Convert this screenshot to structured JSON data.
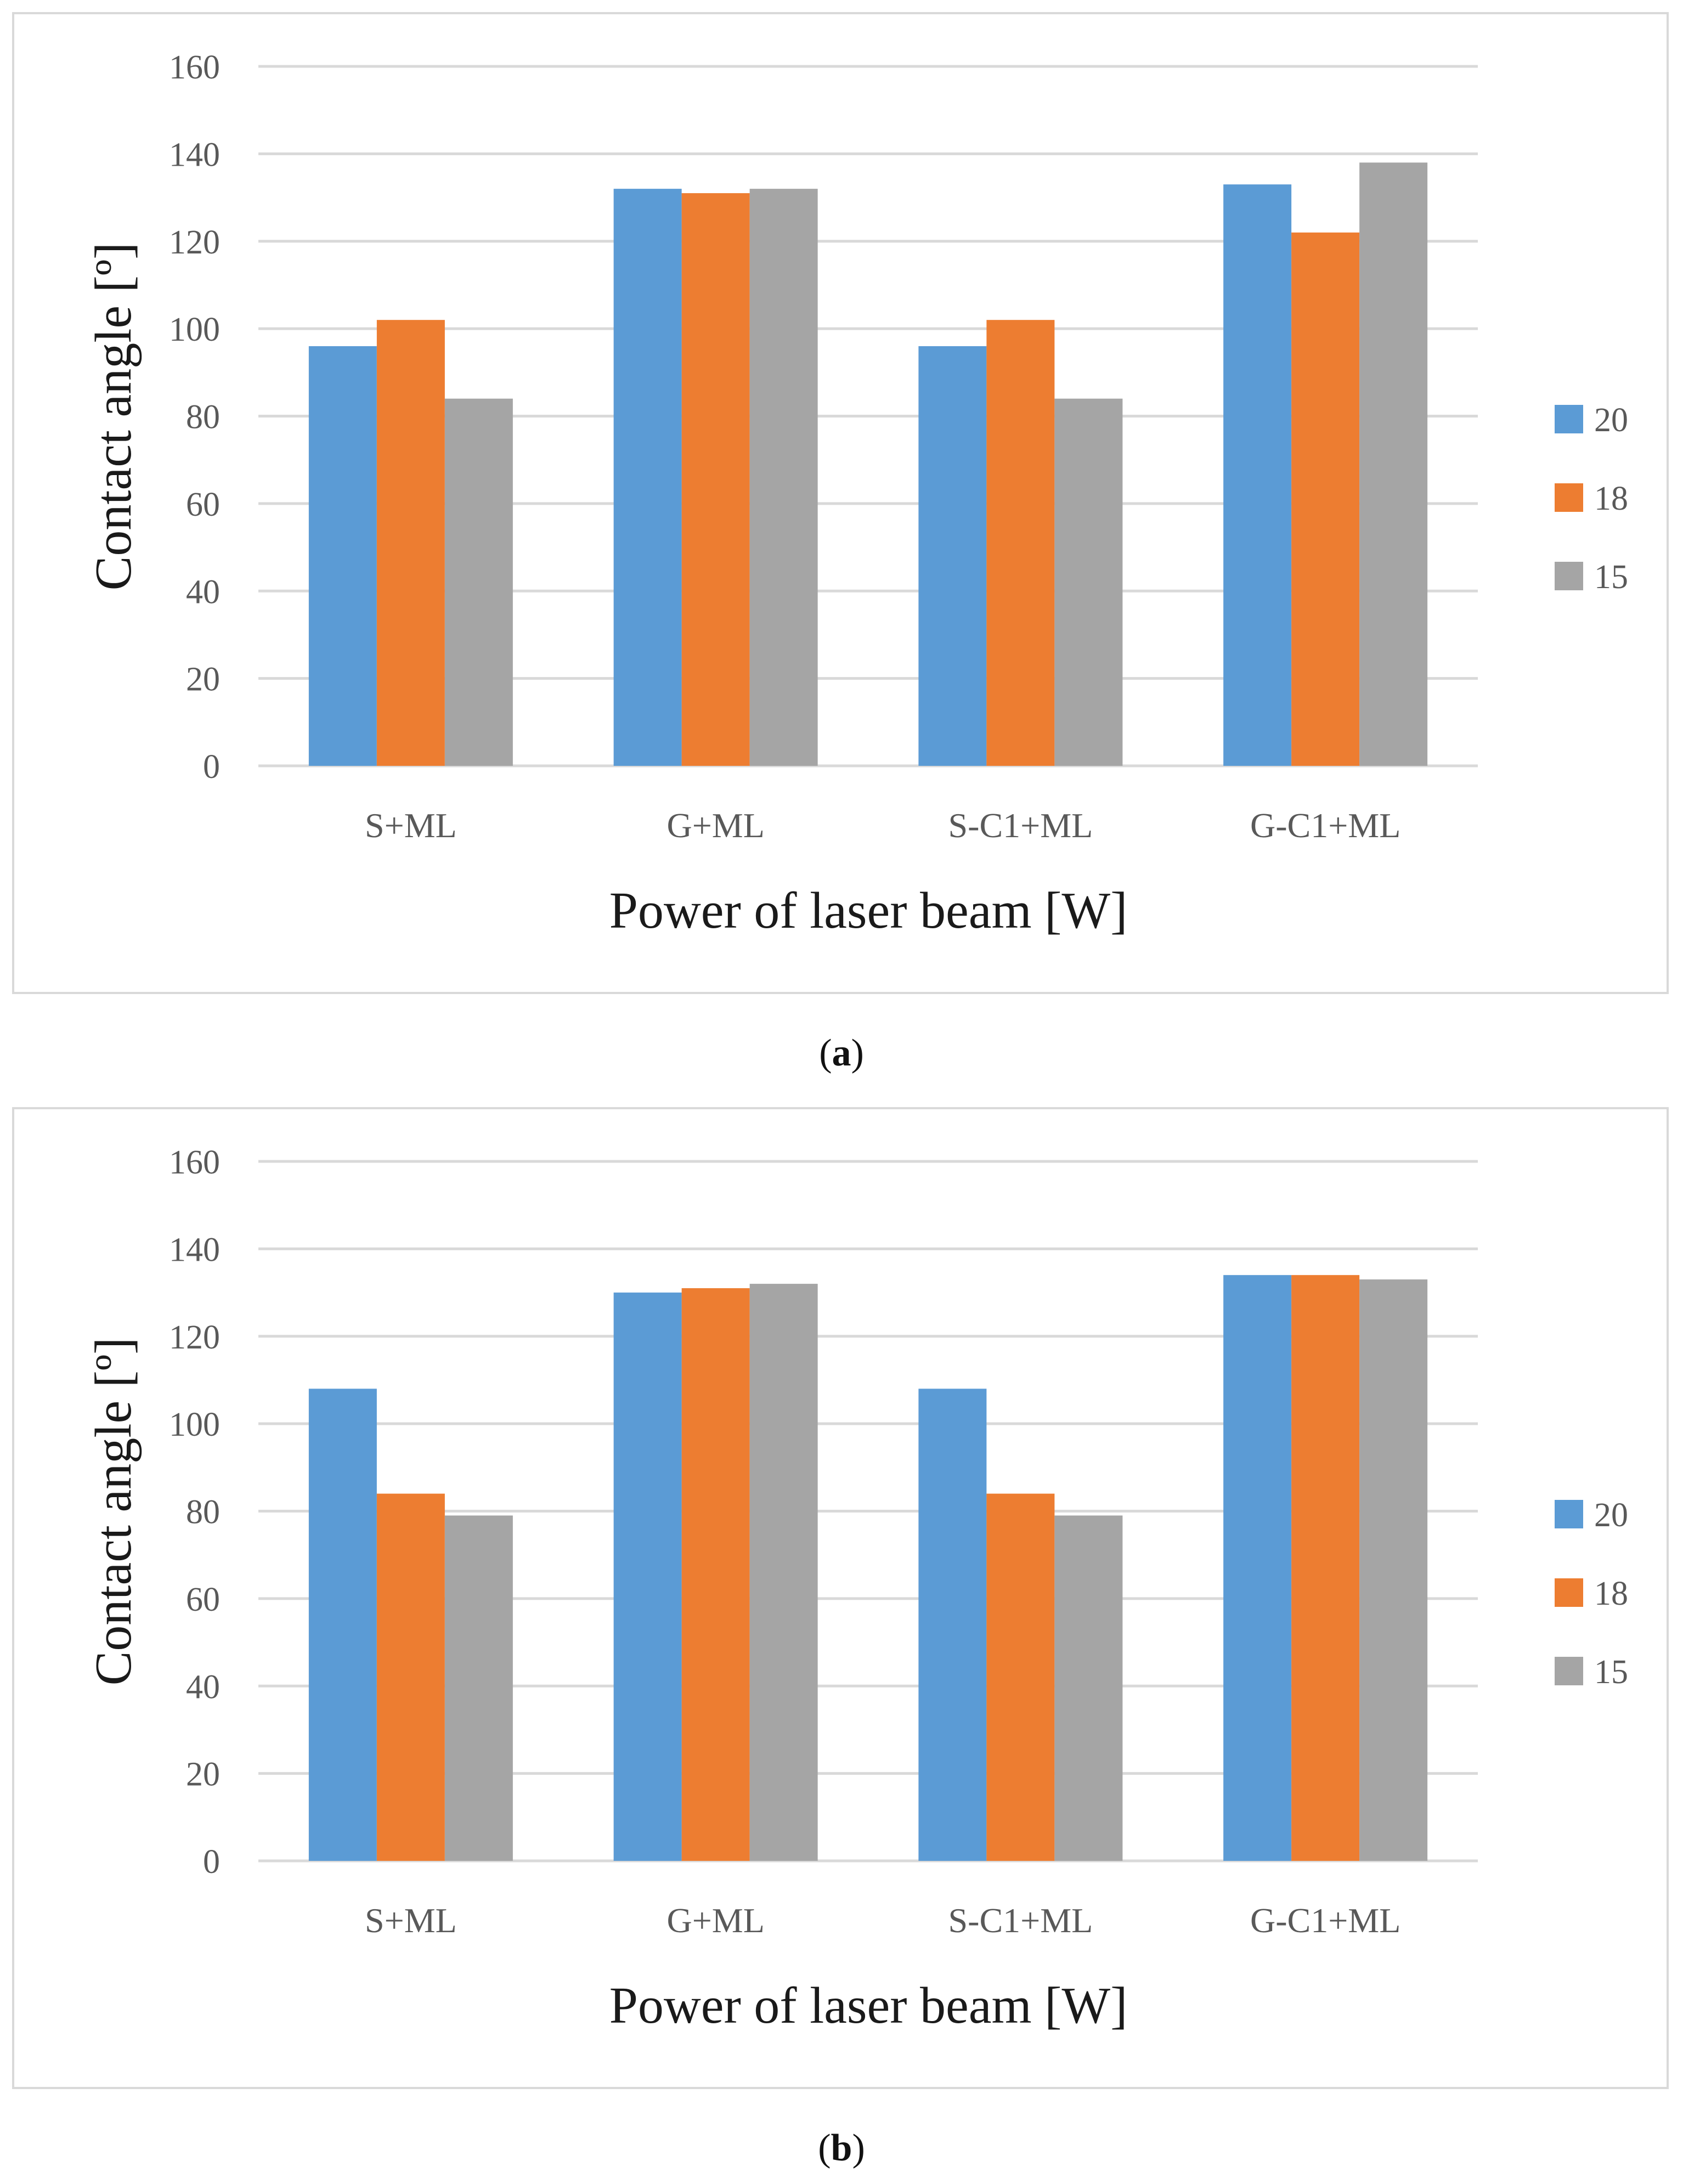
{
  "chart_data": [
    {
      "type": "bar",
      "panel": "a",
      "caption_open": "(",
      "caption_letter": "a",
      "caption_close": ")",
      "categories": [
        "S+ML",
        "G+ML",
        "S-C1+ML",
        "G-C1+ML"
      ],
      "series": [
        {
          "name": "20",
          "color": "#5b9bd5",
          "values": [
            96,
            132,
            96,
            133
          ]
        },
        {
          "name": "18",
          "color": "#ed7d31",
          "values": [
            102,
            131,
            102,
            122
          ]
        },
        {
          "name": "15",
          "color": "#a5a5a5",
          "values": [
            84,
            132,
            84,
            138
          ]
        }
      ],
      "xlabel": "Power of laser beam [W]",
      "ylabel": "Contact angle [º]",
      "ylim": [
        0,
        160
      ],
      "yticks": [
        0,
        20,
        40,
        60,
        80,
        100,
        120,
        140,
        160
      ],
      "grid": true,
      "legend": "right"
    },
    {
      "type": "bar",
      "panel": "b",
      "caption_open": "(",
      "caption_letter": "b",
      "caption_close": ")",
      "categories": [
        "S+ML",
        "G+ML",
        "S-C1+ML",
        "G-C1+ML"
      ],
      "series": [
        {
          "name": "20",
          "color": "#5b9bd5",
          "values": [
            108,
            130,
            108,
            134
          ]
        },
        {
          "name": "18",
          "color": "#ed7d31",
          "values": [
            84,
            131,
            84,
            134
          ]
        },
        {
          "name": "15",
          "color": "#a5a5a5",
          "values": [
            79,
            132,
            79,
            133
          ]
        }
      ],
      "xlabel": "Power of laser beam [W]",
      "ylabel": "Contact angle [º]",
      "ylim": [
        0,
        160
      ],
      "yticks": [
        0,
        20,
        40,
        60,
        80,
        100,
        120,
        140,
        160
      ],
      "grid": true,
      "legend": "right"
    }
  ]
}
